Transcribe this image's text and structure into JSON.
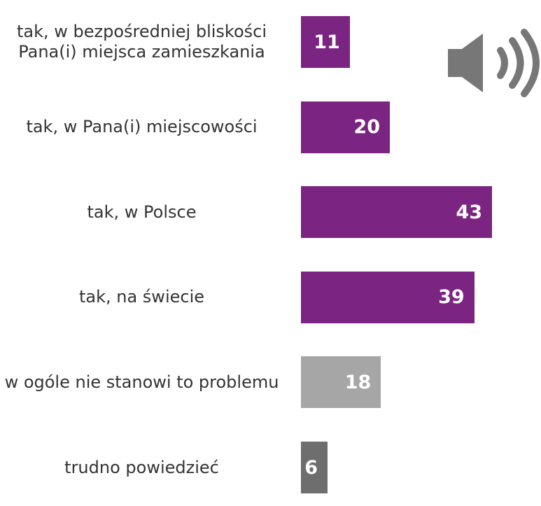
{
  "chart_data": {
    "type": "bar",
    "orientation": "horizontal",
    "categories": [
      "tak, w bezpośredniej bliskości Pana(i) miejsca zamieszkania",
      "tak, w Pana(i) miejscowości",
      "tak, w Polsce",
      "tak, na świecie",
      "w ogóle nie stanowi to problemu",
      "trudno powiedzieć"
    ],
    "values": [
      11,
      20,
      43,
      39,
      18,
      6
    ],
    "colors": [
      "#7b2481",
      "#7b2481",
      "#7b2481",
      "#7b2481",
      "#a6a6a6",
      "#6e6e6e"
    ]
  }
}
